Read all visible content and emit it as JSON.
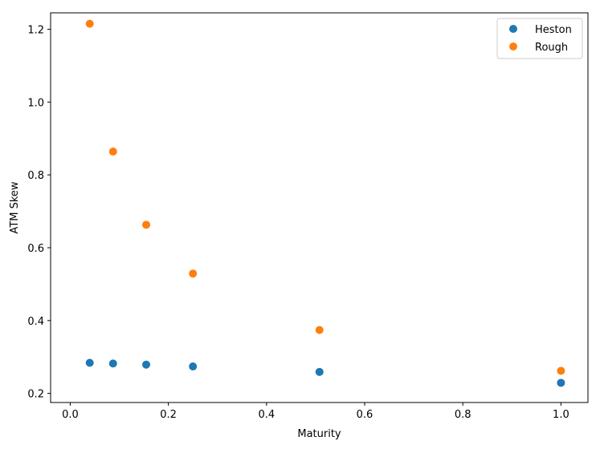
{
  "chart_data": {
    "type": "scatter",
    "title": "",
    "xlabel": "Maturity",
    "ylabel": "ATM Skew",
    "xlim": [
      -0.04,
      1.055
    ],
    "ylim": [
      0.175,
      1.245
    ],
    "xticks": [
      0.0,
      0.2,
      0.4,
      0.6,
      0.8,
      1.0
    ],
    "xtick_labels": [
      "0.0",
      "0.2",
      "0.4",
      "0.6",
      "0.8",
      "1.0"
    ],
    "yticks": [
      0.2,
      0.4,
      0.6,
      0.8,
      1.0,
      1.2
    ],
    "ytick_labels": [
      "0.2",
      "0.4",
      "0.6",
      "0.8",
      "1.0",
      "1.2"
    ],
    "grid": false,
    "legend_position": "top-right",
    "series": [
      {
        "name": "Heston",
        "color": "#1f77b4",
        "x": [
          0.0397,
          0.0873,
          0.1548,
          0.25,
          0.5079,
          1.0
        ],
        "y": [
          0.284,
          0.282,
          0.279,
          0.274,
          0.259,
          0.229
        ]
      },
      {
        "name": "Rough",
        "color": "#ff7f0e",
        "x": [
          0.0397,
          0.0873,
          0.1548,
          0.25,
          0.5079,
          1.0
        ],
        "y": [
          1.215,
          0.864,
          0.663,
          0.529,
          0.374,
          0.262
        ]
      }
    ]
  }
}
